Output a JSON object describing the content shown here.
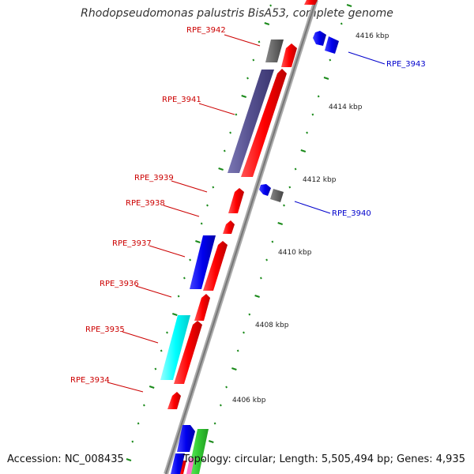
{
  "title": "Rhodopseudomonas palustris BisA53, complete genome",
  "footer": {
    "accession": "Accession: NC_008435",
    "summary": "Topology: circular; Length: 5,505,494 bp; Genes: 4,935"
  },
  "kbp_ticks": [
    "4416 kbp",
    "4414 kbp",
    "4412 kbp",
    "4410 kbp",
    "4408 kbp",
    "4406 kbp"
  ],
  "genes": [
    {
      "name": "RPE_3942",
      "color": "#cc0000"
    },
    {
      "name": "RPE_3941",
      "color": "#cc0000"
    },
    {
      "name": "RPE_3939",
      "color": "#cc0000"
    },
    {
      "name": "RPE_3938",
      "color": "#cc0000"
    },
    {
      "name": "RPE_3937",
      "color": "#cc0000"
    },
    {
      "name": "RPE_3936",
      "color": "#cc0000"
    },
    {
      "name": "RPE_3935",
      "color": "#cc0000"
    },
    {
      "name": "RPE_3934",
      "color": "#cc0000"
    },
    {
      "name": "RPE_3943",
      "color": "#0000cc"
    },
    {
      "name": "RPE_3940",
      "color": "#0000cc"
    }
  ],
  "colors": {
    "backbone": "#999999",
    "forward_strand": "#ff0000",
    "reverse_strand": "#0000ee",
    "cog_purple": "#55508f",
    "cog_cyan": "#00ffff",
    "cog_gray": "#666666",
    "cog_green": "#33cc33",
    "tick_green": "#1a8a1a"
  }
}
